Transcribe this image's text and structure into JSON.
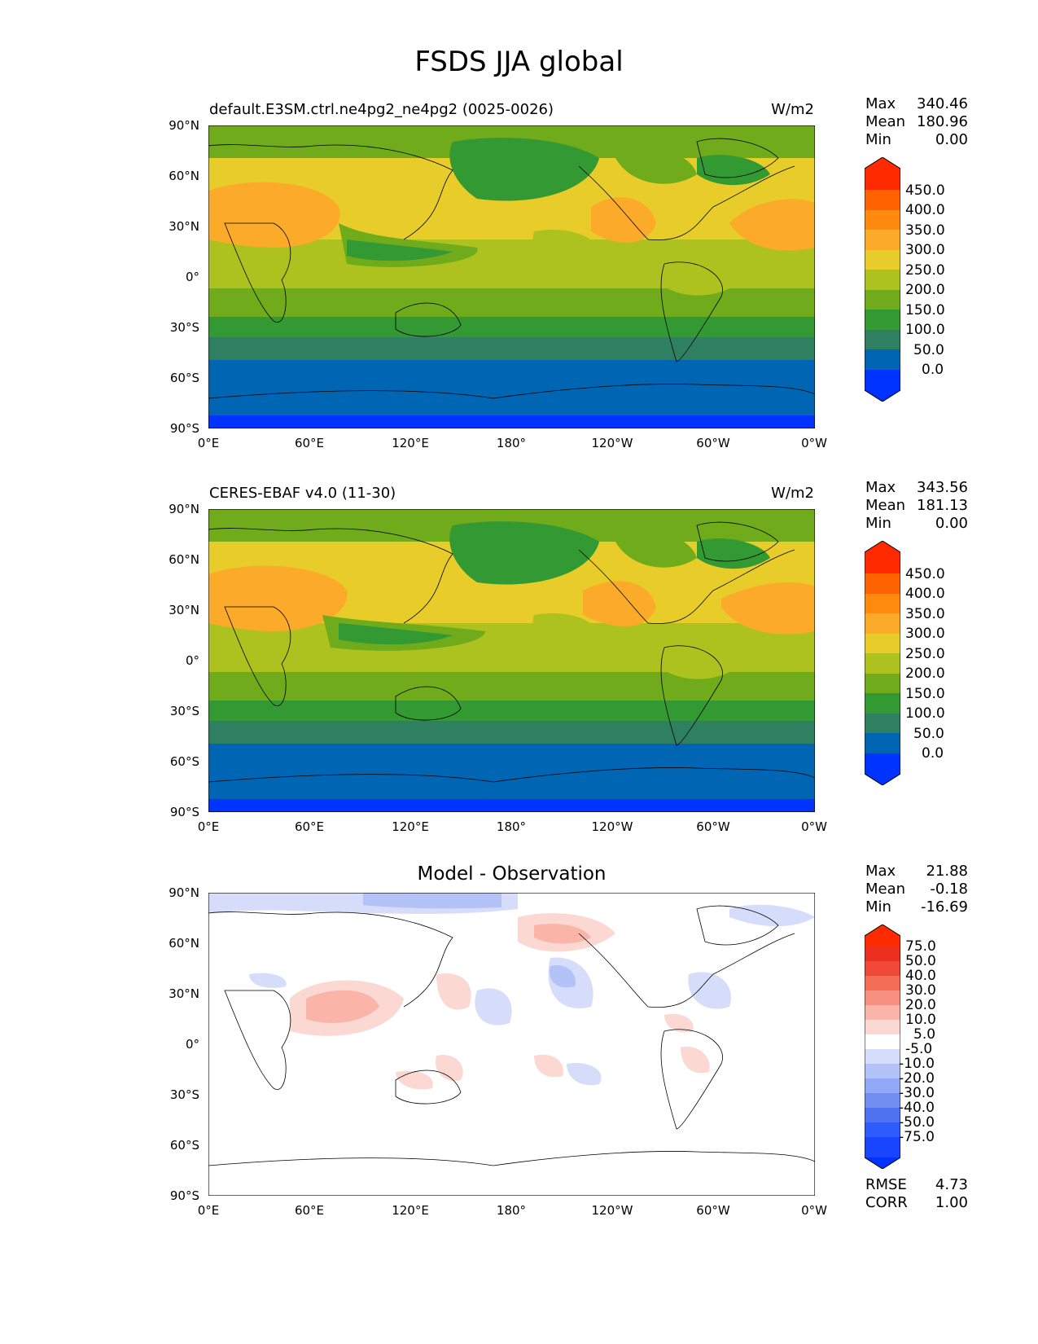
{
  "title": "FSDS JJA global",
  "units": "W/m2",
  "lat_labels": [
    "90°N",
    "60°N",
    "30°N",
    "0°",
    "30°S",
    "60°S",
    "90°S"
  ],
  "lon_labels": [
    "0°E",
    "60°E",
    "120°E",
    "180°",
    "120°W",
    "60°W",
    "0°W"
  ],
  "panels": [
    {
      "name": "test",
      "title": "default.E3SM.ctrl.ne4pg2_ne4pg2 (0025-0026)",
      "units": "W/m2",
      "stats": {
        "max_label": "Max",
        "max": "340.46",
        "mean_label": "Mean",
        "mean": "180.96",
        "min_label": "Min",
        "min": "0.00"
      },
      "colorbar_ticks": [
        "450.0",
        "400.0",
        "350.0",
        "300.0",
        "250.0",
        "200.0",
        "150.0",
        "100.0",
        "50.0",
        "0.0"
      ]
    },
    {
      "name": "reference",
      "title": "CERES-EBAF v4.0 (11-30)",
      "units": "W/m2",
      "stats": {
        "max_label": "Max",
        "max": "343.56",
        "mean_label": "Mean",
        "mean": "181.13",
        "min_label": "Min",
        "min": "0.00"
      },
      "colorbar_ticks": [
        "450.0",
        "400.0",
        "350.0",
        "300.0",
        "250.0",
        "200.0",
        "150.0",
        "100.0",
        "50.0",
        "0.0"
      ]
    },
    {
      "name": "difference",
      "title": "Model - Observation",
      "stats": {
        "max_label": "Max",
        "max": "21.88",
        "mean_label": "Mean",
        "mean": "-0.18",
        "min_label": "Min",
        "min": "-16.69"
      },
      "colorbar_ticks": [
        "75.0",
        "50.0",
        "40.0",
        "30.0",
        "20.0",
        "10.0",
        "5.0",
        "-5.0",
        "-10.0",
        "-20.0",
        "-30.0",
        "-40.0",
        "-50.0",
        "-75.0"
      ],
      "metrics": {
        "rmse_label": "RMSE",
        "rmse": "4.73",
        "corr_label": "CORR",
        "corr": "1.00"
      }
    }
  ],
  "colors": {
    "abs_scale": [
      "#0033ff",
      "#0066b3",
      "#2e8060",
      "#339933",
      "#6fab1a",
      "#aec21f",
      "#e8cc29",
      "#fbaa29",
      "#ff8a0d",
      "#ff6200",
      "#ff2a00"
    ],
    "diff_scale": [
      "#0033ff",
      "#2e5cff",
      "#4f73f0",
      "#6f8ef0",
      "#90a8f5",
      "#b3c2f7",
      "#d5ddfa",
      "#ffffff",
      "#fbd8d2",
      "#fab4a8",
      "#f8907f",
      "#f46d55",
      "#f0493a",
      "#ec3020",
      "#ff2a00"
    ]
  }
}
